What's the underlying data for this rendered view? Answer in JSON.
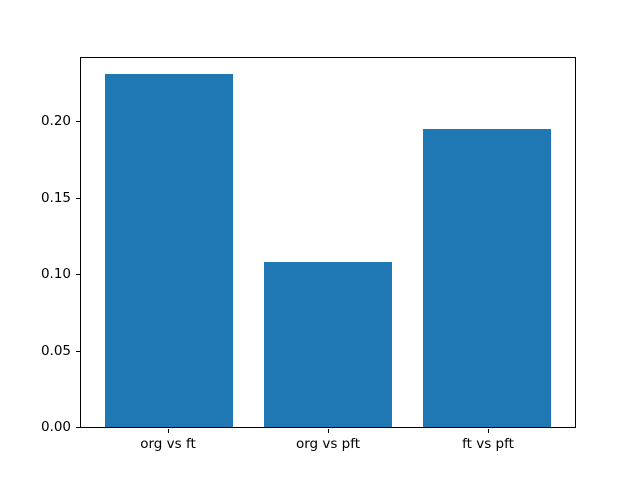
{
  "figure": {
    "background": "#ffffff"
  },
  "chart_data": {
    "type": "bar",
    "title": "",
    "xlabel": "",
    "ylabel": "",
    "categories": [
      "org vs ft",
      "org vs pft",
      "ft vs pft"
    ],
    "values": [
      0.231,
      0.108,
      0.195
    ],
    "ylim": [
      0,
      0.2426
    ],
    "xlim": [
      -0.55,
      2.55
    ],
    "yticks": [
      0.0,
      0.05,
      0.1,
      0.15,
      0.2
    ],
    "ytick_labels": [
      "0.00",
      "0.05",
      "0.10",
      "0.15",
      "0.20"
    ],
    "bar_width": 0.8,
    "bar_color": "#1f77b4",
    "axis_color": "#000000",
    "text_color": "#000000",
    "grid": false,
    "legend": "none"
  }
}
